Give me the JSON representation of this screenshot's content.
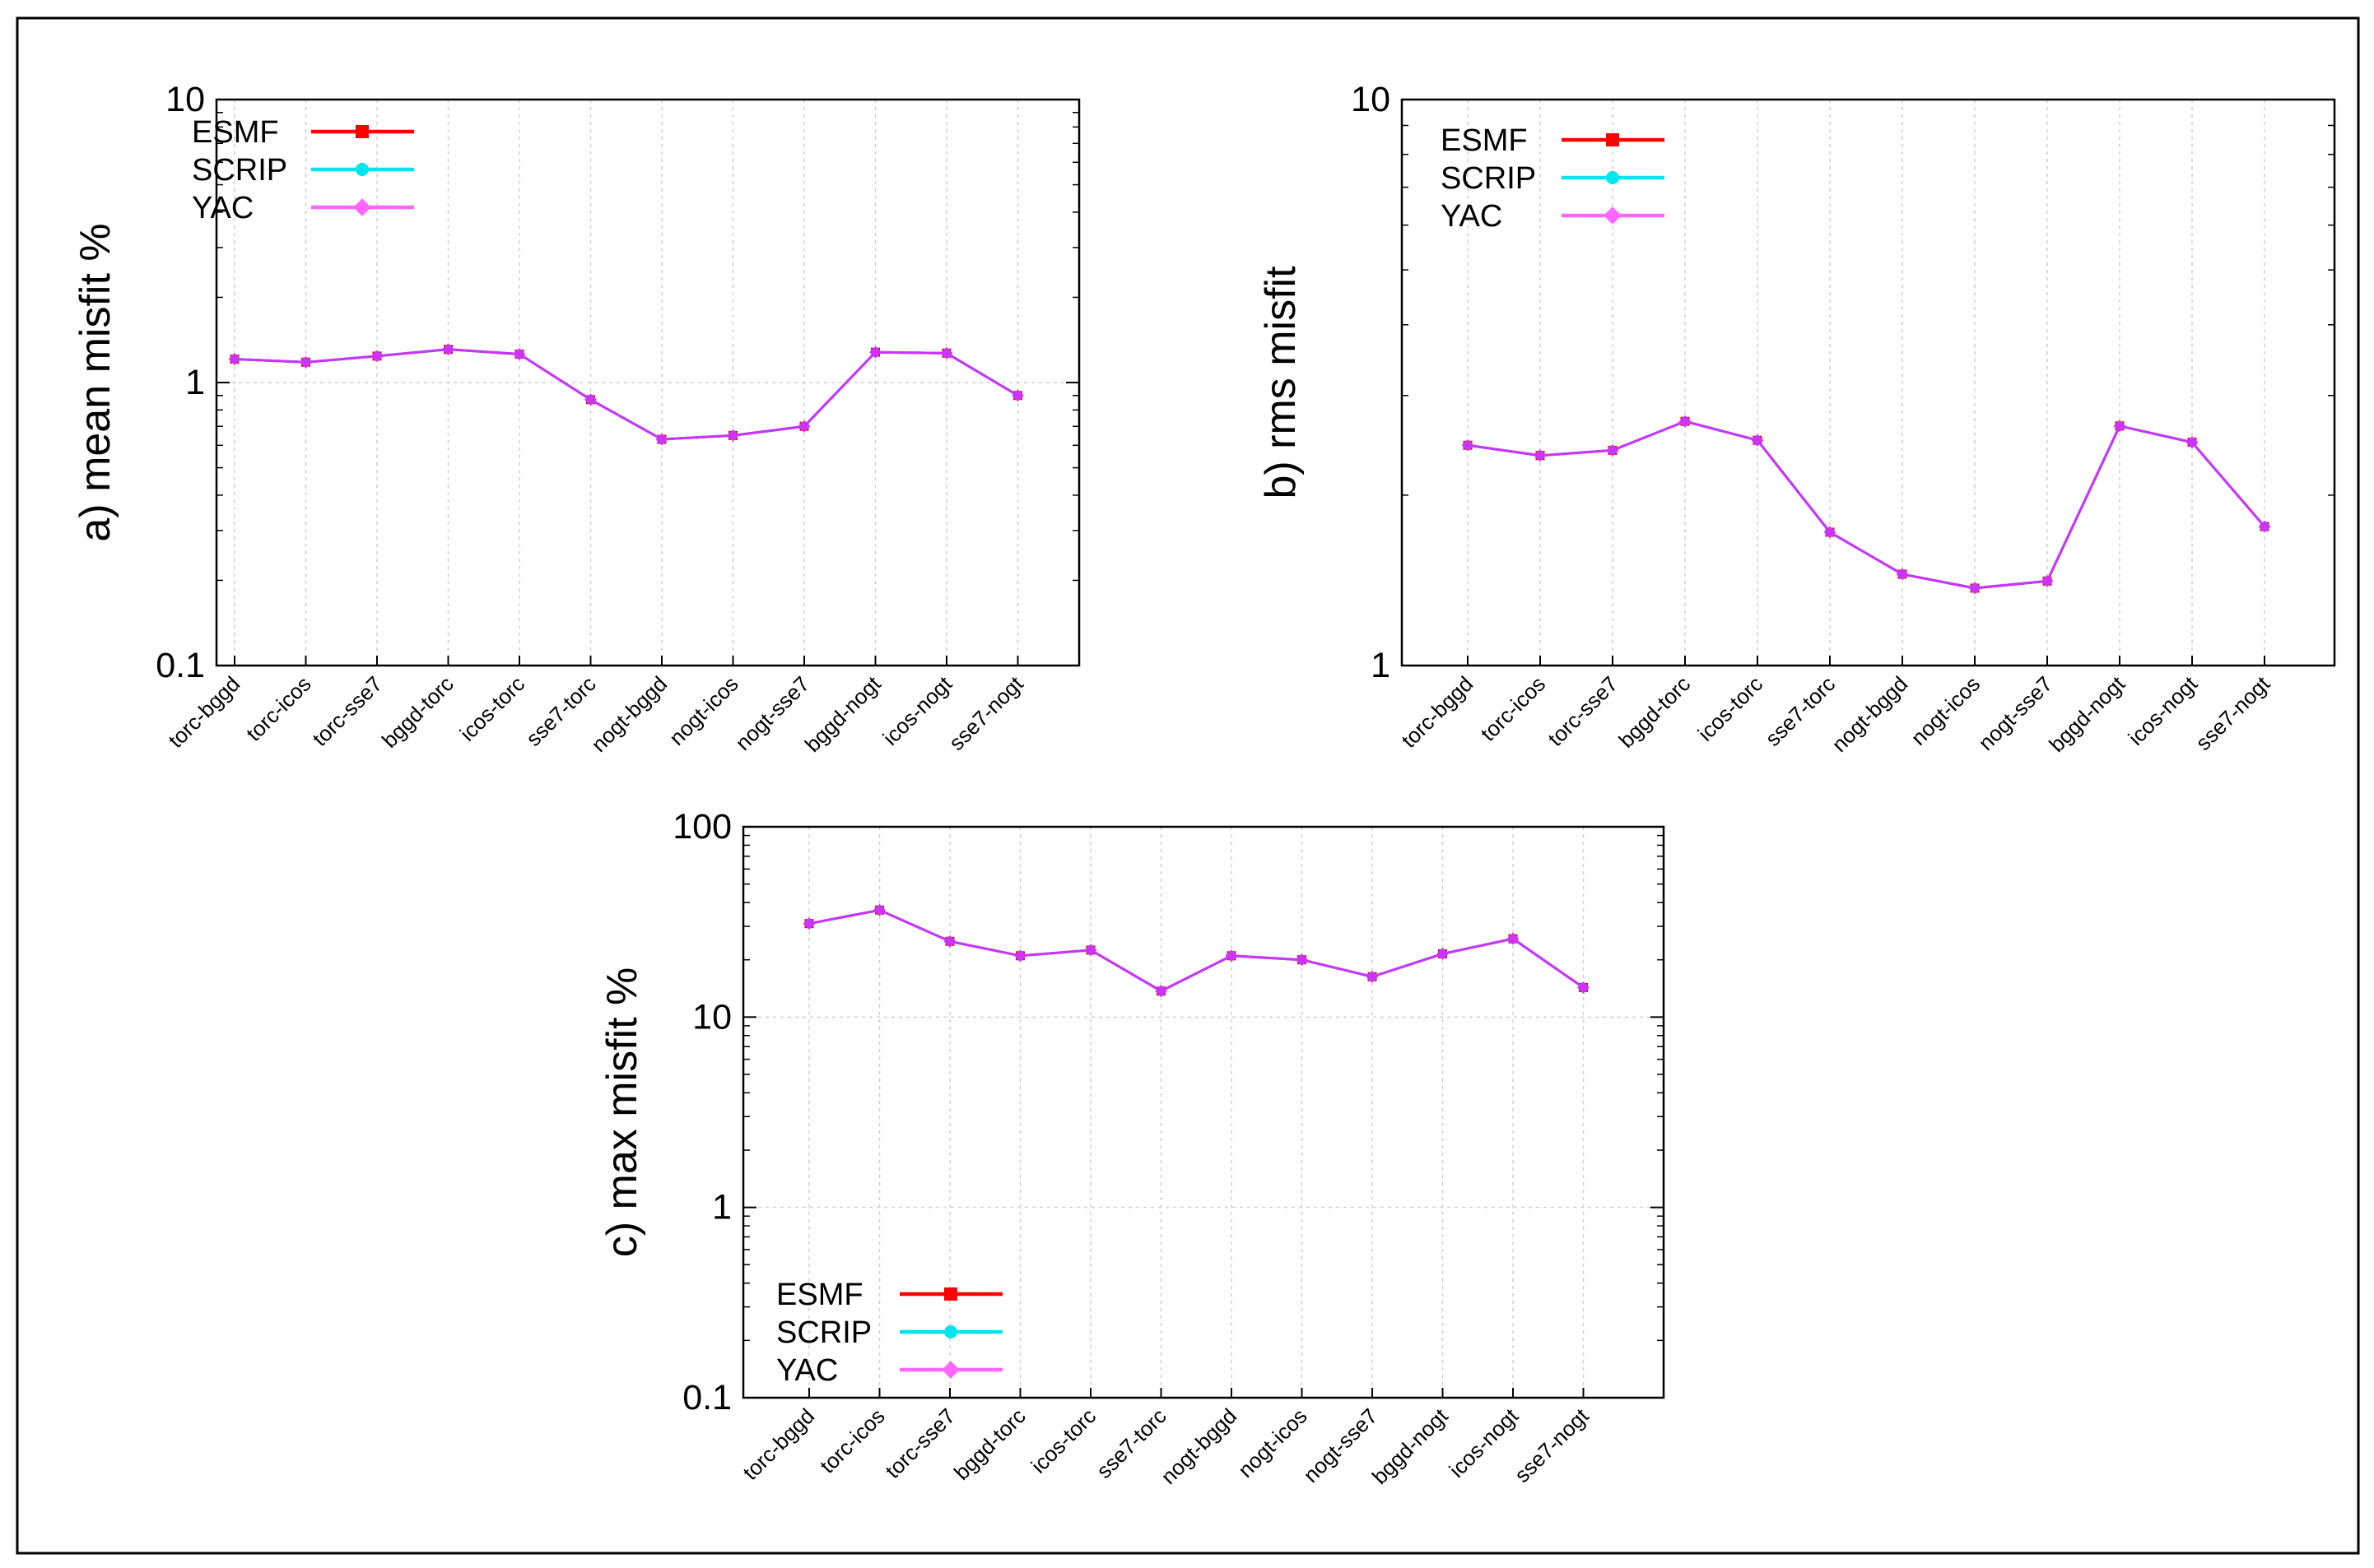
{
  "colors": {
    "esmf": "#ff0000",
    "scrip": "#00e5ee",
    "yac": "#ff66ff",
    "overlap": "#cc33ff",
    "grid": "#d0d0d0",
    "frame": "#000000"
  },
  "chart_data": [
    {
      "type": "line",
      "yscale": "log",
      "ylabel": "a) mean misfit %",
      "ylim": [
        0.1,
        10
      ],
      "yticks": [
        "0.1",
        "1",
        "10"
      ],
      "legend_position": "top-left",
      "categories": [
        "torc-bggd",
        "torc-icos",
        "torc-sse7",
        "bggd-torc",
        "icos-torc",
        "sse7-torc",
        "nogt-bggd",
        "nogt-icos",
        "nogt-sse7",
        "bggd-nogt",
        "icos-nogt",
        "sse7-nogt"
      ],
      "series": [
        {
          "name": "ESMF",
          "marker": "square",
          "values": [
            1.21,
            1.18,
            1.24,
            1.31,
            1.26,
            0.87,
            0.63,
            0.65,
            0.7,
            1.28,
            1.27,
            0.9
          ]
        },
        {
          "name": "SCRIP",
          "marker": "circle",
          "values": [
            1.21,
            1.18,
            1.24,
            1.31,
            1.26,
            0.87,
            0.63,
            0.65,
            0.7,
            1.28,
            1.27,
            0.9
          ]
        },
        {
          "name": "YAC",
          "marker": "diamond",
          "values": [
            1.21,
            1.18,
            1.24,
            1.31,
            1.26,
            0.87,
            0.63,
            0.65,
            0.7,
            1.28,
            1.27,
            0.9
          ]
        }
      ]
    },
    {
      "type": "line",
      "yscale": "log",
      "ylabel": "b) rms misfit",
      "ylim": [
        1,
        10
      ],
      "yticks": [
        "1",
        "10"
      ],
      "legend_position": "top-left",
      "categories": [
        "torc-bggd",
        "torc-icos",
        "torc-sse7",
        "bggd-torc",
        "icos-torc",
        "sse7-torc",
        "nogt-bggd",
        "nogt-icos",
        "nogt-sse7",
        "bggd-nogt",
        "icos-nogt",
        "sse7-nogt"
      ],
      "series": [
        {
          "name": "ESMF",
          "marker": "square",
          "values": [
            2.45,
            2.35,
            2.4,
            2.7,
            2.5,
            1.72,
            1.45,
            1.37,
            1.41,
            2.65,
            2.48,
            1.76
          ]
        },
        {
          "name": "SCRIP",
          "marker": "circle",
          "values": [
            2.45,
            2.35,
            2.4,
            2.7,
            2.5,
            1.72,
            1.45,
            1.37,
            1.41,
            2.65,
            2.48,
            1.76
          ]
        },
        {
          "name": "YAC",
          "marker": "diamond",
          "values": [
            2.45,
            2.35,
            2.4,
            2.7,
            2.5,
            1.72,
            1.45,
            1.37,
            1.41,
            2.65,
            2.48,
            1.76
          ]
        }
      ]
    },
    {
      "type": "line",
      "yscale": "log",
      "ylabel": "c) max misfit %",
      "ylim": [
        0.1,
        100
      ],
      "yticks": [
        "0.1",
        "1",
        "10",
        "100"
      ],
      "legend_position": "bottom-left",
      "categories": [
        "torc-bggd",
        "torc-icos",
        "torc-sse7",
        "bggd-torc",
        "icos-torc",
        "sse7-torc",
        "nogt-bggd",
        "nogt-icos",
        "nogt-sse7",
        "bggd-nogt",
        "icos-nogt",
        "sse7-nogt"
      ],
      "series": [
        {
          "name": "ESMF",
          "marker": "square",
          "values": [
            31,
            36.5,
            25,
            21,
            22.5,
            13.7,
            21,
            20,
            16.3,
            21.5,
            25.8,
            14.3
          ]
        },
        {
          "name": "SCRIP",
          "marker": "circle",
          "values": [
            31,
            36.5,
            25,
            21,
            22.5,
            13.7,
            21,
            20,
            16.3,
            21.5,
            25.8,
            14.3
          ]
        },
        {
          "name": "YAC",
          "marker": "diamond",
          "values": [
            31,
            36.5,
            25,
            21,
            22.5,
            13.7,
            21,
            20,
            16.3,
            21.5,
            25.8,
            14.3
          ]
        }
      ]
    }
  ]
}
